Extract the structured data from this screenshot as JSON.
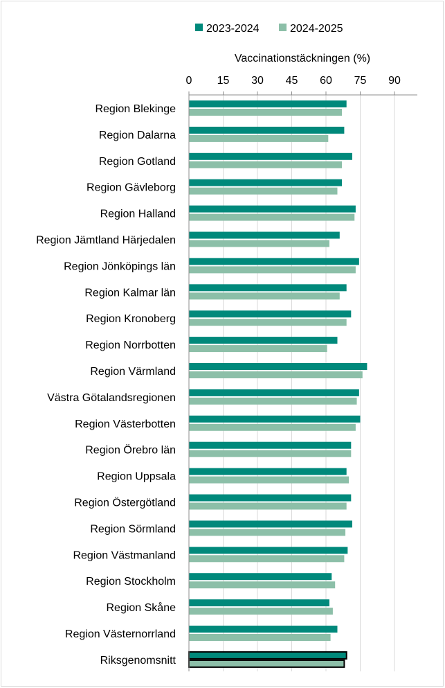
{
  "chart_data": {
    "type": "bar",
    "orientation": "horizontal",
    "xlabel": "Vaccinationstäckningen (%)",
    "xlim": [
      0,
      100
    ],
    "xticks": [
      0,
      15,
      30,
      45,
      60,
      75,
      90
    ],
    "legend_position": "top",
    "grid": "vertical",
    "categories": [
      "Region Blekinge",
      "Region Dalarna",
      "Region Gotland",
      "Region Gävleborg",
      "Region Halland",
      "Region Jämtland Härjedalen",
      "Region Jönköpings län",
      "Region Kalmar län",
      "Region Kronoberg",
      "Region Norrbotten",
      "Region Värmland",
      "Västra Götalandsregionen",
      "Region Västerbotten",
      "Region Örebro län",
      "Region Uppsala ",
      "Region Östergötland",
      "Region Sörmland",
      "Region Västmanland",
      "Region Stockholm",
      "Region Skåne",
      "Region Västernorrland",
      "Riksgenomsnitt"
    ],
    "highlighted_category": "Riksgenomsnitt",
    "series": [
      {
        "name": "2023-2024",
        "color": "#00897b",
        "values": [
          69,
          68,
          71.5,
          67,
          73,
          66,
          74.5,
          69,
          71,
          65,
          78,
          74.5,
          75,
          71,
          69,
          71,
          71.5,
          69.5,
          62.5,
          61.5,
          65,
          69
        ]
      },
      {
        "name": "2024-2025",
        "color": "#8cbfa8",
        "values": [
          67,
          61,
          67,
          65,
          72.5,
          61.5,
          73,
          66,
          69,
          60.5,
          76,
          73.5,
          73,
          71,
          70,
          69,
          68.5,
          68,
          64,
          63,
          62,
          68
        ]
      }
    ]
  }
}
